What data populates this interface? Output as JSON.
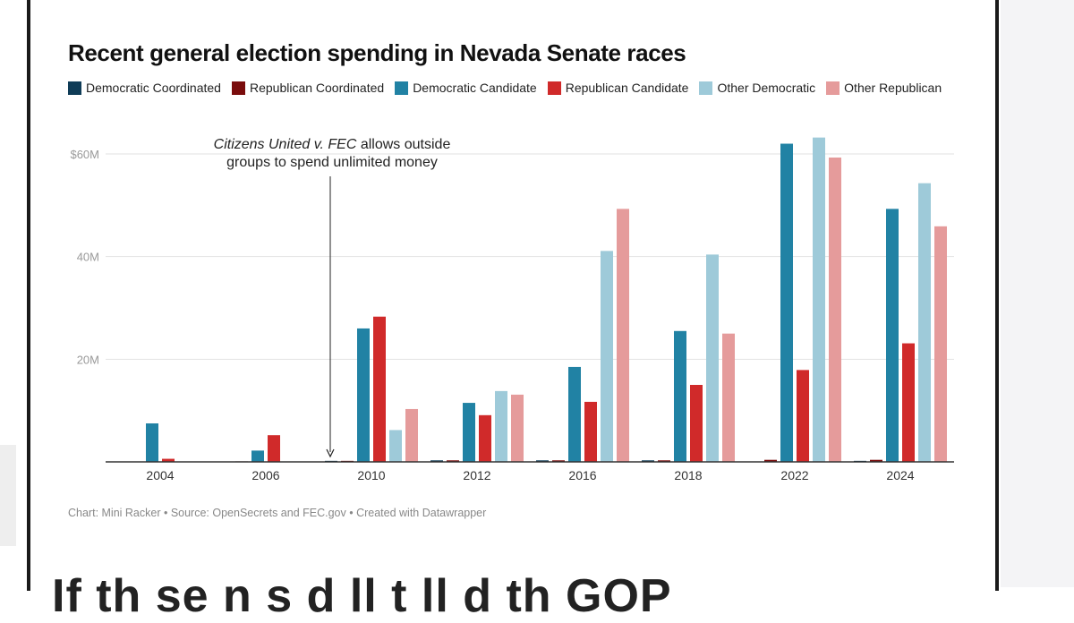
{
  "chart_data": {
    "type": "bar",
    "title": "Recent general election spending in Nevada Senate races",
    "categories": [
      "2004",
      "2006",
      "2010",
      "2012",
      "2016",
      "2018",
      "2022",
      "2024"
    ],
    "series": [
      {
        "name": "Democratic Coordinated",
        "color": "#0f3c57",
        "values": [
          0,
          0,
          0.2,
          0.3,
          0.3,
          0.3,
          0,
          0.2
        ]
      },
      {
        "name": "Republican Coordinated",
        "color": "#7a0c0c",
        "values": [
          0,
          0.1,
          0.2,
          0.3,
          0.3,
          0.3,
          0.4,
          0.4
        ]
      },
      {
        "name": "Democratic Candidate",
        "color": "#2182a4",
        "values": [
          7.5,
          2.2,
          26,
          11.5,
          18.5,
          25.5,
          62,
          49.3
        ]
      },
      {
        "name": "Republican Candidate",
        "color": "#d02a2a",
        "values": [
          0.6,
          5.2,
          28.3,
          9.1,
          11.7,
          15,
          17.9,
          23.1
        ]
      },
      {
        "name": "Other Democratic",
        "color": "#9ecad9",
        "values": [
          0,
          0,
          6.2,
          13.8,
          41.1,
          40.4,
          63.2,
          54.3
        ]
      },
      {
        "name": "Other Republican",
        "color": "#e59b9b",
        "values": [
          0,
          0,
          10.3,
          13.1,
          49.3,
          25,
          59.3,
          45.9
        ]
      }
    ],
    "ylim": [
      0,
      60
    ],
    "yticks": [
      {
        "value": 20,
        "label": "20M"
      },
      {
        "value": 40,
        "label": "40M"
      },
      {
        "value": 60,
        "label": "$60M"
      }
    ],
    "annotation": {
      "line1_italic": "Citizens United v. FEC",
      "line1_rest": " allows outside",
      "line2": "groups to spend unlimited money"
    },
    "xlabel": "",
    "ylabel": "",
    "legend_position": "top"
  },
  "footer": "Chart: Mini Racker • Source: OpenSecrets and FEC.gov • Created with Datawrapper",
  "article_text": "If th  se    n     s     d  ll   t   ll   d  th  GOP"
}
